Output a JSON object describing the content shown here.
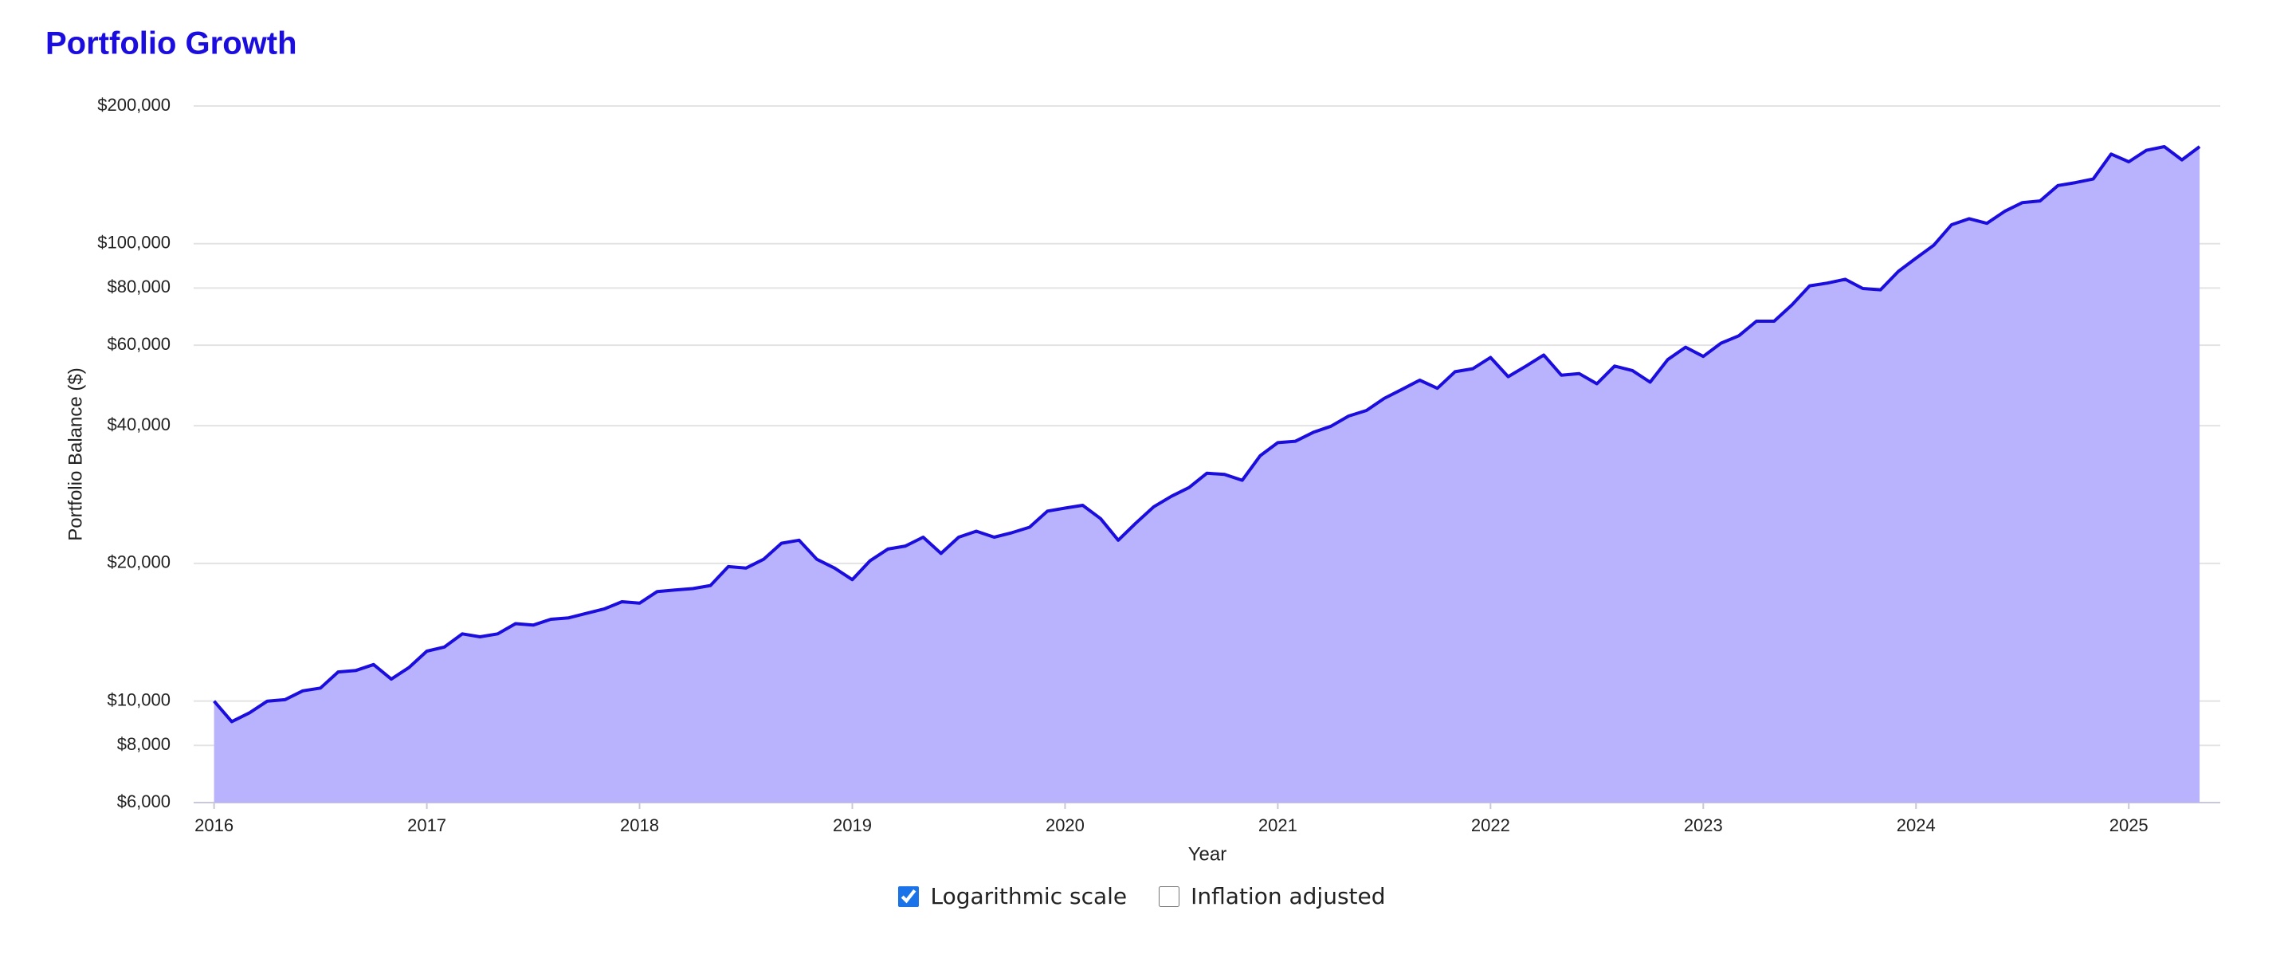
{
  "chart_data": {
    "type": "area",
    "title": "Portfolio Growth",
    "xlabel": "Year",
    "ylabel": "Portfolio Balance ($)",
    "log_scale": true,
    "grid": true,
    "line_color": "#1a0dde",
    "fill_color": "#b8b3fc",
    "xlim": [
      2015.904,
      2025.43
    ],
    "xticks": [
      2016,
      2017,
      2018,
      2019,
      2020,
      2021,
      2022,
      2023,
      2024,
      2025
    ],
    "ylim": [
      6000,
      200000
    ],
    "yticks": [
      {
        "value": 6000,
        "label": "$6,000"
      },
      {
        "value": 8000,
        "label": "$8,000"
      },
      {
        "value": 10000,
        "label": "$10,000"
      },
      {
        "value": 20000,
        "label": "$20,000"
      },
      {
        "value": 40000,
        "label": "$40,000"
      },
      {
        "value": 60000,
        "label": "$60,000"
      },
      {
        "value": 80000,
        "label": "$80,000"
      },
      {
        "value": 100000,
        "label": "$100,000"
      },
      {
        "value": 200000,
        "label": "$200,000"
      }
    ],
    "x": [
      2016,
      2016.083,
      2016.167,
      2016.25,
      2016.333,
      2016.417,
      2016.5,
      2016.583,
      2016.667,
      2016.75,
      2016.833,
      2016.917,
      2017,
      2017.083,
      2017.167,
      2017.25,
      2017.333,
      2017.417,
      2017.5,
      2017.583,
      2017.667,
      2017.75,
      2017.833,
      2017.917,
      2018,
      2018.083,
      2018.167,
      2018.25,
      2018.333,
      2018.417,
      2018.5,
      2018.583,
      2018.667,
      2018.75,
      2018.833,
      2018.917,
      2019,
      2019.083,
      2019.167,
      2019.25,
      2019.333,
      2019.417,
      2019.5,
      2019.583,
      2019.667,
      2019.75,
      2019.833,
      2019.917,
      2020,
      2020.083,
      2020.167,
      2020.25,
      2020.333,
      2020.417,
      2020.5,
      2020.583,
      2020.667,
      2020.75,
      2020.833,
      2020.917,
      2021,
      2021.083,
      2021.167,
      2021.25,
      2021.333,
      2021.417,
      2021.5,
      2021.583,
      2021.667,
      2021.75,
      2021.833,
      2021.917,
      2022,
      2022.083,
      2022.167,
      2022.25,
      2022.333,
      2022.417,
      2022.5,
      2022.583,
      2022.667,
      2022.75,
      2022.833,
      2022.917,
      2023,
      2023.083,
      2023.167,
      2023.25,
      2023.333,
      2023.417,
      2023.5,
      2023.583,
      2023.667,
      2023.75,
      2023.833,
      2023.917,
      2024,
      2024.083,
      2024.167,
      2024.25,
      2024.333,
      2024.417,
      2024.5,
      2024.583,
      2024.667,
      2024.75,
      2024.833,
      2024.917,
      2025,
      2025.083,
      2025.167,
      2025.25,
      2025.333
    ],
    "values": [
      10000,
      9020,
      9430,
      10000,
      10070,
      10530,
      10680,
      11580,
      11670,
      12020,
      11170,
      11850,
      12860,
      13130,
      14030,
      13820,
      14030,
      14770,
      14660,
      15100,
      15210,
      15550,
      15900,
      16490,
      16370,
      17360,
      17490,
      17620,
      17890,
      19680,
      19530,
      20420,
      22140,
      22480,
      20420,
      19530,
      18430,
      20260,
      21500,
      21830,
      22820,
      21030,
      22820,
      23520,
      22820,
      23340,
      24000,
      26020,
      26420,
      26800,
      25060,
      22480,
      24500,
      26600,
      28040,
      29300,
      31500,
      31300,
      30400,
      34380,
      36730,
      37000,
      38700,
      39900,
      42000,
      43200,
      45900,
      48000,
      50300,
      48300,
      52500,
      53300,
      56400,
      51200,
      54000,
      57100,
      51600,
      52000,
      49400,
      54000,
      52800,
      49800,
      55800,
      59400,
      56700,
      60600,
      62900,
      67700,
      67700,
      73500,
      80900,
      82000,
      83600,
      79800,
      79300,
      87000,
      93000,
      99200,
      110000,
      113400,
      110800,
      117700,
      123000,
      124000,
      134000,
      136000,
      138500,
      157000,
      151000,
      160000,
      163000,
      152500,
      163000
    ]
  },
  "controls": [
    {
      "label": "Logarithmic scale",
      "checked": true
    },
    {
      "label": "Inflation adjusted",
      "checked": false
    }
  ]
}
